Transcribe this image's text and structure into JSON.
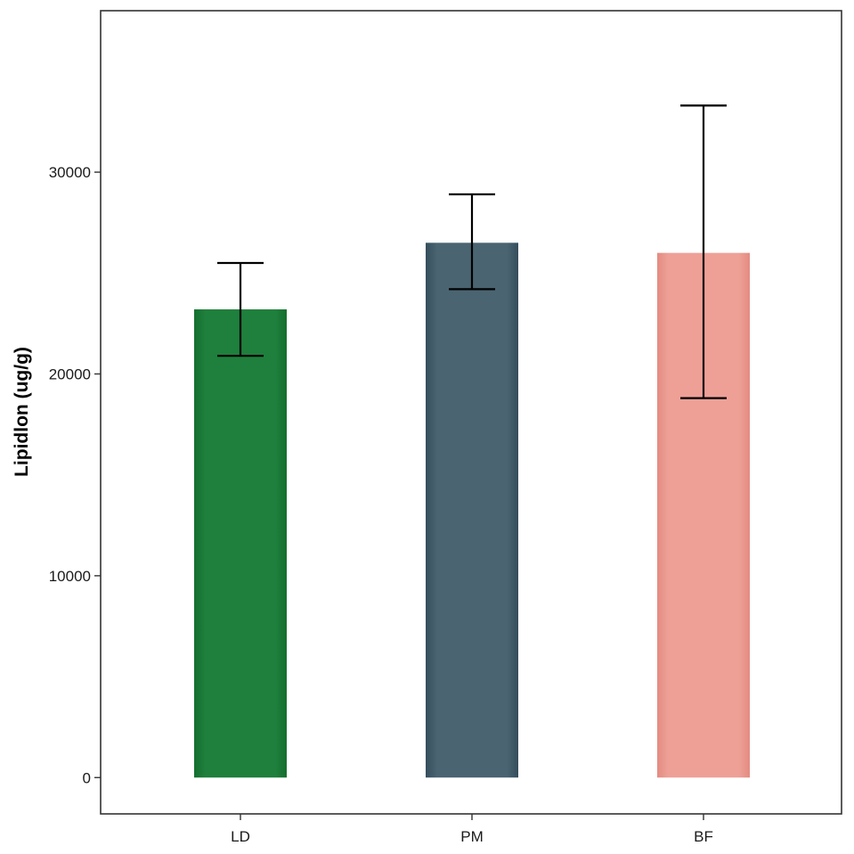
{
  "chart_data": {
    "type": "bar",
    "title": "",
    "xlabel": "",
    "ylabel": "Lipidlon (ug/g)",
    "categories": [
      "LD",
      "PM",
      "BF"
    ],
    "values": [
      23200,
      26500,
      26000
    ],
    "error_bars": {
      "lower": [
        20900,
        24200,
        18800
      ],
      "upper": [
        25500,
        28900,
        33300
      ]
    },
    "colors": [
      "#1f7f3c",
      "#4a6472",
      "#eea097"
    ],
    "ylim": [
      -1800,
      38000
    ],
    "yticks": [
      0,
      10000,
      20000,
      30000
    ],
    "ytick_labels": [
      "0",
      "10000",
      "20000",
      "30000"
    ],
    "grid": false,
    "legend": "none"
  }
}
